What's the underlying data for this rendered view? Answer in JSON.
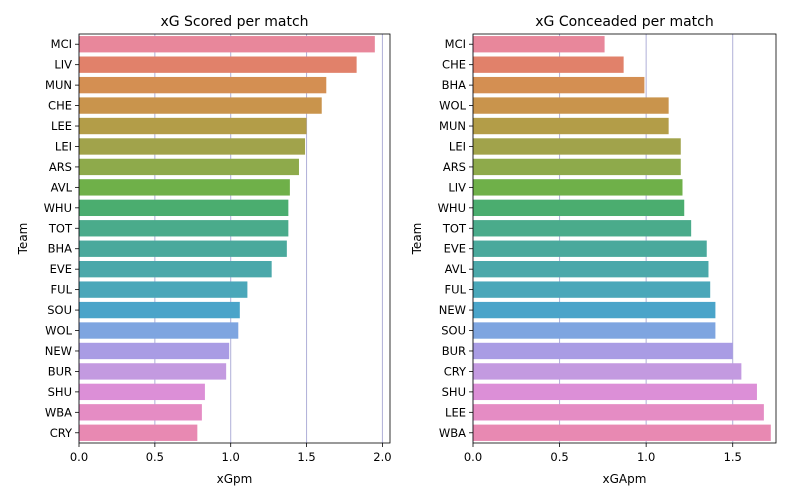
{
  "chart_data": [
    {
      "type": "bar",
      "orientation": "horizontal",
      "title": "xG Scored per match",
      "xlabel": "xGpm",
      "ylabel": "Team",
      "xlim": [
        0,
        2.05
      ],
      "xticks": [
        "0.0",
        "0.5",
        "1.0",
        "1.5",
        "2.0"
      ],
      "xtick_values": [
        0,
        0.5,
        1.0,
        1.5,
        2.0
      ],
      "grid": "vertical",
      "categories": [
        "MCI",
        "LIV",
        "MUN",
        "CHE",
        "LEE",
        "LEI",
        "ARS",
        "AVL",
        "WHU",
        "TOT",
        "BHA",
        "EVE",
        "FUL",
        "SOU",
        "WOL",
        "NEW",
        "BUR",
        "SHU",
        "WBA",
        "CRY"
      ],
      "values": [
        1.95,
        1.83,
        1.63,
        1.6,
        1.5,
        1.49,
        1.45,
        1.39,
        1.38,
        1.38,
        1.37,
        1.27,
        1.11,
        1.06,
        1.05,
        0.99,
        0.97,
        0.83,
        0.81,
        0.78
      ]
    },
    {
      "type": "bar",
      "orientation": "horizontal",
      "title": "xG Conceaded per match",
      "xlabel": "xGApm",
      "ylabel": "Team",
      "xlim": [
        0,
        1.75
      ],
      "xticks": [
        "0.0",
        "0.5",
        "1.0",
        "1.5"
      ],
      "xtick_values": [
        0,
        0.5,
        1.0,
        1.5
      ],
      "grid": "vertical",
      "categories": [
        "MCI",
        "CHE",
        "BHA",
        "WOL",
        "MUN",
        "LEI",
        "ARS",
        "LIV",
        "WHU",
        "TOT",
        "EVE",
        "AVL",
        "FUL",
        "NEW",
        "SOU",
        "BUR",
        "CRY",
        "SHU",
        "LEE",
        "WBA"
      ],
      "values": [
        0.76,
        0.87,
        0.99,
        1.13,
        1.13,
        1.2,
        1.2,
        1.21,
        1.22,
        1.26,
        1.35,
        1.36,
        1.37,
        1.4,
        1.4,
        1.5,
        1.55,
        1.64,
        1.68,
        1.72
      ]
    }
  ],
  "palette": [
    "#e8879b",
    "#e1816a",
    "#d48f52",
    "#c9944c",
    "#b39d48",
    "#a1a34b",
    "#8eaa4b",
    "#6fb049",
    "#4bad6f",
    "#4aab8b",
    "#4aa99c",
    "#4ba8aa",
    "#4aa7b9",
    "#4aa4c9",
    "#7ea5e0",
    "#a99ce4",
    "#c39ae0",
    "#dc8fd7",
    "#e58cc4",
    "#e889b2"
  ],
  "grid_color": "#b0b0d8"
}
